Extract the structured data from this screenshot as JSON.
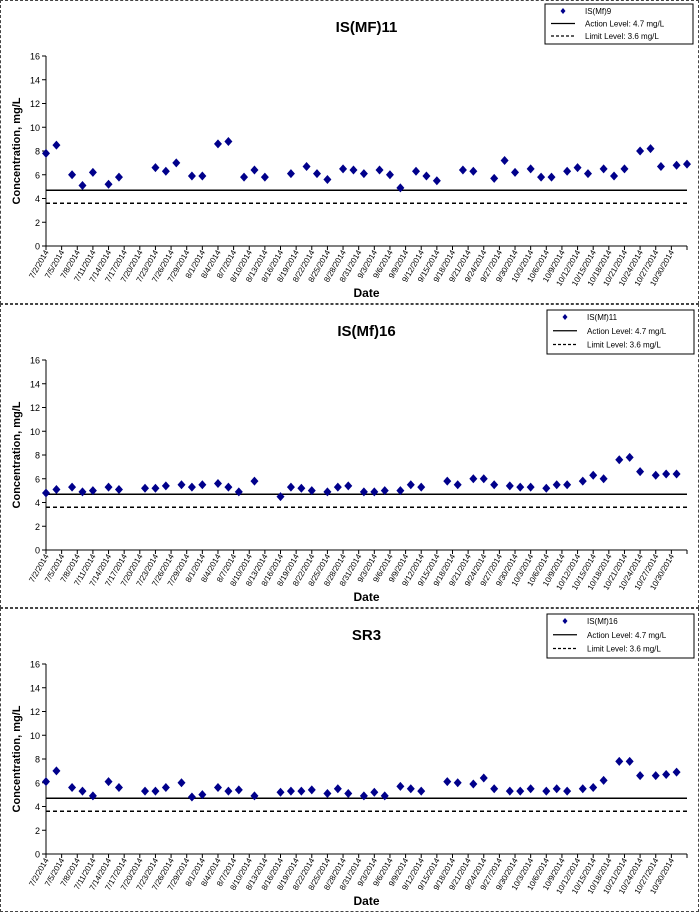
{
  "chart_data": [
    {
      "type": "scatter",
      "title": "IS(MF)11",
      "xlabel": "Date",
      "ylabel": "Concentration, mg/L",
      "ylim": [
        0,
        16
      ],
      "yticks": [
        0,
        2,
        4,
        6,
        8,
        10,
        12,
        14,
        16
      ],
      "grid": false,
      "legend_position": "top-right",
      "xtick_labels": [
        "7/2/2014",
        "7/5/2014",
        "7/8/2014",
        "7/11/2014",
        "7/14/2014",
        "7/17/2014",
        "7/20/2014",
        "7/23/2014",
        "7/26/2014",
        "7/29/2014",
        "8/1/2014",
        "8/4/2014",
        "8/7/2014",
        "8/10/2014",
        "8/13/2014",
        "8/16/2014",
        "8/19/2014",
        "8/22/2014",
        "8/25/2014",
        "8/28/2014",
        "8/31/2014",
        "9/3/2014",
        "9/6/2014",
        "9/9/2014",
        "9/12/2014",
        "9/15/2014",
        "9/18/2014",
        "9/21/2014",
        "9/24/2014",
        "9/27/2014",
        "9/30/2014",
        "10/3/2014",
        "10/6/2014",
        "10/9/2014",
        "10/12/2014",
        "10/15/2014",
        "10/18/2014",
        "10/21/2014",
        "10/24/2014",
        "10/27/2014",
        "10/30/2014"
      ],
      "series": [
        {
          "name": "IS(Mf)9",
          "color": "#00008B",
          "marker": "diamond",
          "x": [
            "7/2/2014",
            "7/4/2014",
            "7/7/2014",
            "7/9/2014",
            "7/11/2014",
            "7/14/2014",
            "7/16/2014",
            "7/23/2014",
            "7/25/2014",
            "7/27/2014",
            "7/30/2014",
            "8/1/2014",
            "8/4/2014",
            "8/6/2014",
            "8/9/2014",
            "8/11/2014",
            "8/13/2014",
            "8/18/2014",
            "8/21/2014",
            "8/23/2014",
            "8/25/2014",
            "8/28/2014",
            "8/30/2014",
            "9/1/2014",
            "9/4/2014",
            "9/6/2014",
            "9/8/2014",
            "9/11/2014",
            "9/13/2014",
            "9/15/2014",
            "9/20/2014",
            "9/22/2014",
            "9/26/2014",
            "9/28/2014",
            "9/30/2014",
            "10/3/2014",
            "10/5/2014",
            "10/7/2014",
            "10/10/2014",
            "10/12/2014",
            "10/14/2014",
            "10/17/2014",
            "10/19/2014",
            "10/21/2014",
            "10/24/2014",
            "10/26/2014",
            "10/28/2014",
            "10/31/2014",
            "11/2/2014"
          ],
          "y": [
            7.8,
            8.5,
            6.0,
            5.1,
            6.2,
            5.2,
            5.8,
            6.6,
            6.3,
            7.0,
            5.9,
            5.9,
            8.6,
            8.8,
            5.8,
            6.4,
            5.8,
            6.1,
            6.7,
            6.1,
            5.6,
            6.5,
            6.4,
            6.1,
            6.4,
            6.0,
            4.9,
            6.3,
            5.9,
            5.5,
            6.4,
            6.3,
            5.7,
            7.2,
            6.2,
            6.5,
            5.8,
            5.8,
            6.3,
            6.6,
            6.1,
            6.5,
            5.9,
            6.5,
            8.0,
            8.2,
            6.7,
            6.8,
            6.9
          ]
        },
        {
          "name": "Action Level: 4.7 mg/L",
          "color": "#000000",
          "line": "solid",
          "y": 4.7
        },
        {
          "name": "Limit Level: 3.6 mg/L",
          "color": "#000000",
          "line": "dashed",
          "y": 3.6
        }
      ]
    },
    {
      "type": "scatter",
      "title": "IS(Mf)16",
      "xlabel": "Date",
      "ylabel": "Concentration, mg/L",
      "ylim": [
        0,
        16
      ],
      "yticks": [
        0,
        2,
        4,
        6,
        8,
        10,
        12,
        14,
        16
      ],
      "grid": false,
      "legend_position": "top-right",
      "xtick_labels": [
        "7/2/2014",
        "7/5/2014",
        "7/8/2014",
        "7/11/2014",
        "7/14/2014",
        "7/17/2014",
        "7/20/2014",
        "7/23/2014",
        "7/26/2014",
        "7/29/2014",
        "8/1/2014",
        "8/4/2014",
        "8/7/2014",
        "8/10/2014",
        "8/13/2014",
        "8/16/2014",
        "8/19/2014",
        "8/22/2014",
        "8/25/2014",
        "8/28/2014",
        "8/31/2014",
        "9/3/2014",
        "9/6/2014",
        "9/9/2014",
        "9/12/2014",
        "9/15/2014",
        "9/18/2014",
        "9/21/2014",
        "9/24/2014",
        "9/27/2014",
        "9/30/2014",
        "10/3/2014",
        "10/6/2014",
        "10/9/2014",
        "10/12/2014",
        "10/15/2014",
        "10/18/2014",
        "10/21/2014",
        "10/24/2014",
        "10/27/2014",
        "10/30/2014"
      ],
      "series": [
        {
          "name": "IS(Mf)11",
          "color": "#00008B",
          "marker": "diamond",
          "x": [
            "7/2/2014",
            "7/4/2014",
            "7/7/2014",
            "7/9/2014",
            "7/11/2014",
            "7/14/2014",
            "7/16/2014",
            "7/21/2014",
            "7/23/2014",
            "7/25/2014",
            "7/28/2014",
            "7/30/2014",
            "8/1/2014",
            "8/4/2014",
            "8/6/2014",
            "8/8/2014",
            "8/11/2014",
            "8/16/2014",
            "8/18/2014",
            "8/20/2014",
            "8/22/2014",
            "8/25/2014",
            "8/27/2014",
            "8/29/2014",
            "9/1/2014",
            "9/3/2014",
            "9/5/2014",
            "9/8/2014",
            "9/10/2014",
            "9/12/2014",
            "9/17/2014",
            "9/19/2014",
            "9/22/2014",
            "9/24/2014",
            "9/26/2014",
            "9/29/2014",
            "10/1/2014",
            "10/3/2014",
            "10/6/2014",
            "10/8/2014",
            "10/10/2014",
            "10/13/2014",
            "10/15/2014",
            "10/17/2014",
            "10/20/2014",
            "10/22/2014",
            "10/24/2014",
            "10/27/2014",
            "10/29/2014",
            "10/31/2014"
          ],
          "y": [
            4.8,
            5.1,
            5.3,
            4.9,
            5.0,
            5.3,
            5.1,
            5.2,
            5.2,
            5.4,
            5.5,
            5.3,
            5.5,
            5.6,
            5.3,
            4.9,
            5.8,
            4.5,
            5.3,
            5.2,
            5.0,
            4.9,
            5.3,
            5.4,
            4.9,
            4.9,
            5.0,
            5.0,
            5.5,
            5.3,
            5.8,
            5.5,
            6.0,
            6.0,
            5.5,
            5.4,
            5.3,
            5.3,
            5.2,
            5.5,
            5.5,
            5.8,
            6.3,
            6.0,
            7.6,
            7.8,
            6.6,
            6.3,
            6.4,
            6.4
          ]
        },
        {
          "name": "Action Level: 4.7 mg/L",
          "color": "#000000",
          "line": "solid",
          "y": 4.7
        },
        {
          "name": "Limit Level: 3.6 mg/L",
          "color": "#000000",
          "line": "dashed",
          "y": 3.6
        }
      ]
    },
    {
      "type": "scatter",
      "title": "SR3",
      "xlabel": "Date",
      "ylabel": "Concentration, mg/L",
      "ylim": [
        0,
        16
      ],
      "yticks": [
        0,
        2,
        4,
        6,
        8,
        10,
        12,
        14,
        16
      ],
      "grid": false,
      "legend_position": "top-right",
      "xtick_labels": [
        "7/2/2014",
        "7/5/2014",
        "7/8/2014",
        "7/11/2014",
        "7/14/2014",
        "7/17/2014",
        "7/20/2014",
        "7/23/2014",
        "7/26/2014",
        "7/29/2014",
        "8/1/2014",
        "8/4/2014",
        "8/7/2014",
        "8/10/2014",
        "8/13/2014",
        "8/16/2014",
        "8/19/2014",
        "8/22/2014",
        "8/25/2014",
        "8/28/2014",
        "8/31/2014",
        "9/3/2014",
        "9/6/2014",
        "9/9/2014",
        "9/12/2014",
        "9/15/2014",
        "9/18/2014",
        "9/21/2014",
        "9/24/2014",
        "9/27/2014",
        "9/30/2014",
        "10/3/2014",
        "10/6/2014",
        "10/9/2014",
        "10/12/2014",
        "10/15/2014",
        "10/18/2014",
        "10/21/2014",
        "10/24/2014",
        "10/27/2014",
        "10/30/2014"
      ],
      "series": [
        {
          "name": "IS(Mf)16",
          "color": "#00008B",
          "marker": "diamond",
          "x": [
            "7/2/2014",
            "7/4/2014",
            "7/7/2014",
            "7/9/2014",
            "7/11/2014",
            "7/14/2014",
            "7/16/2014",
            "7/21/2014",
            "7/23/2014",
            "7/25/2014",
            "7/28/2014",
            "7/30/2014",
            "8/1/2014",
            "8/4/2014",
            "8/6/2014",
            "8/8/2014",
            "8/11/2014",
            "8/16/2014",
            "8/18/2014",
            "8/20/2014",
            "8/22/2014",
            "8/25/2014",
            "8/27/2014",
            "8/29/2014",
            "9/1/2014",
            "9/3/2014",
            "9/5/2014",
            "9/8/2014",
            "9/10/2014",
            "9/12/2014",
            "9/17/2014",
            "9/19/2014",
            "9/22/2014",
            "9/24/2014",
            "9/26/2014",
            "9/29/2014",
            "10/1/2014",
            "10/3/2014",
            "10/6/2014",
            "10/8/2014",
            "10/10/2014",
            "10/13/2014",
            "10/15/2014",
            "10/17/2014",
            "10/20/2014",
            "10/22/2014",
            "10/24/2014",
            "10/27/2014",
            "10/29/2014",
            "10/31/2014"
          ],
          "y": [
            6.1,
            7.0,
            5.6,
            5.3,
            4.9,
            6.1,
            5.6,
            5.3,
            5.3,
            5.6,
            6.0,
            4.8,
            5.0,
            5.6,
            5.3,
            5.4,
            4.9,
            5.2,
            5.3,
            5.3,
            5.4,
            5.1,
            5.5,
            5.1,
            4.9,
            5.2,
            4.9,
            5.7,
            5.5,
            5.3,
            6.1,
            6.0,
            5.9,
            6.4,
            5.5,
            5.3,
            5.3,
            5.5,
            5.3,
            5.5,
            5.3,
            5.5,
            5.6,
            6.2,
            7.8,
            7.8,
            6.6,
            6.6,
            6.7,
            6.9
          ]
        },
        {
          "name": "Action Level: 4.7 mg/L",
          "color": "#000000",
          "line": "solid",
          "y": 4.7
        },
        {
          "name": "Limit Level: 3.6 mg/L",
          "color": "#000000",
          "line": "dashed",
          "y": 3.6
        }
      ]
    }
  ]
}
